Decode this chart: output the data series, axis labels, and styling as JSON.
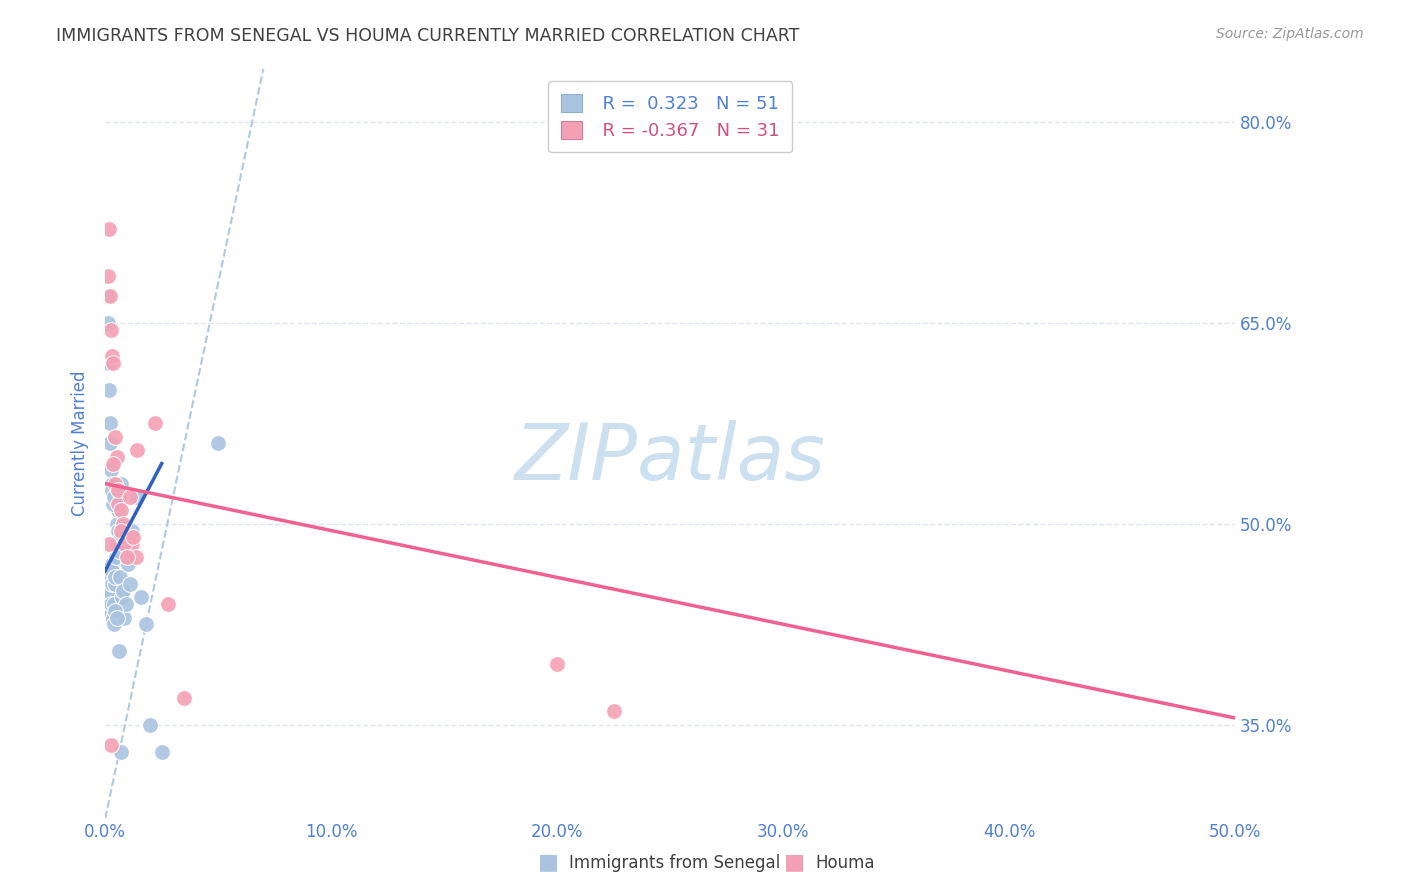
{
  "title": "IMMIGRANTS FROM SENEGAL VS HOUMA CURRENTLY MARRIED CORRELATION CHART",
  "source": "Source: ZipAtlas.com",
  "ylabel_left": "Currently Married",
  "x_tick_values": [
    0.0,
    10.0,
    20.0,
    30.0,
    40.0,
    50.0
  ],
  "x_tick_labels": [
    "0.0%",
    "10.0%",
    "20.0%",
    "30.0%",
    "40.0%",
    "50.0%"
  ],
  "y_tick_values": [
    35.0,
    50.0,
    65.0,
    80.0
  ],
  "y_tick_labels": [
    "35.0%",
    "50.0%",
    "65.0%",
    "80.0%"
  ],
  "xlim": [
    0.0,
    50.0
  ],
  "ylim": [
    28.0,
    84.0
  ],
  "legend_labels": [
    "Immigrants from Senegal",
    "Houma"
  ],
  "blue_R": "R =  0.323",
  "blue_N": "N = 51",
  "pink_R": "R = -0.367",
  "pink_N": "N = 31",
  "blue_color": "#aac4e0",
  "pink_color": "#f4a0b4",
  "blue_line_color": "#3060c0",
  "pink_line_color": "#f06090",
  "ref_line_color": "#b0c8e0",
  "watermark_text": "ZIPatlas",
  "watermark_color": "#cce0f0",
  "title_color": "#404040",
  "axis_label_color": "#5080d0",
  "tick_color": "#5080d0",
  "grid_color": "#e0e4ec",
  "background_color": "#ffffff",
  "blue_scatter_x": [
    0.15,
    0.18,
    0.2,
    0.22,
    0.25,
    0.28,
    0.3,
    0.32,
    0.35,
    0.38,
    0.4,
    0.42,
    0.45,
    0.48,
    0.5,
    0.52,
    0.55,
    0.58,
    0.6,
    0.62,
    0.65,
    0.68,
    0.7,
    0.75,
    0.8,
    0.85,
    0.9,
    1.0,
    1.1,
    1.2,
    1.4,
    1.6,
    1.8,
    2.0,
    2.5,
    0.1,
    0.12,
    0.15,
    0.18,
    0.2,
    0.22,
    0.25,
    0.28,
    0.3,
    0.35,
    0.4,
    0.45,
    0.5,
    0.6,
    0.7,
    5.0
  ],
  "blue_scatter_y": [
    44.5,
    45.0,
    43.5,
    46.0,
    44.0,
    47.0,
    46.5,
    45.5,
    43.0,
    42.5,
    44.0,
    45.5,
    46.0,
    47.5,
    48.5,
    50.0,
    51.0,
    49.5,
    48.0,
    52.0,
    46.0,
    53.0,
    49.0,
    44.5,
    45.0,
    43.0,
    44.0,
    47.0,
    45.5,
    49.5,
    52.0,
    44.5,
    42.5,
    35.0,
    33.0,
    67.0,
    65.0,
    62.0,
    60.0,
    56.0,
    57.5,
    54.0,
    53.0,
    52.5,
    51.5,
    52.0,
    43.5,
    43.0,
    40.5,
    33.0,
    56.0
  ],
  "pink_scatter_x": [
    0.12,
    0.2,
    0.28,
    0.35,
    0.42,
    0.5,
    0.58,
    0.68,
    0.8,
    0.92,
    1.05,
    1.2,
    1.35,
    0.15,
    0.25,
    0.35,
    0.45,
    0.55,
    0.68,
    0.82,
    0.95,
    1.1,
    1.25,
    1.4,
    2.8,
    3.5,
    20.0,
    22.5,
    0.15,
    0.25,
    2.2
  ],
  "pink_scatter_y": [
    68.5,
    67.0,
    62.5,
    62.0,
    56.5,
    55.0,
    51.5,
    51.0,
    50.0,
    49.0,
    48.0,
    48.5,
    47.5,
    72.0,
    64.5,
    54.5,
    53.0,
    52.5,
    49.5,
    48.5,
    47.5,
    52.0,
    49.0,
    55.5,
    44.0,
    37.0,
    39.5,
    36.0,
    48.5,
    33.5,
    57.5
  ],
  "blue_line_x": [
    0.0,
    2.5
  ],
  "blue_line_y": [
    46.5,
    54.5
  ],
  "pink_line_x": [
    0.0,
    50.0
  ],
  "pink_line_y": [
    53.0,
    35.5
  ],
  "ref_line_x": [
    0.0,
    7.0
  ],
  "ref_line_y": [
    28.0,
    84.0
  ]
}
